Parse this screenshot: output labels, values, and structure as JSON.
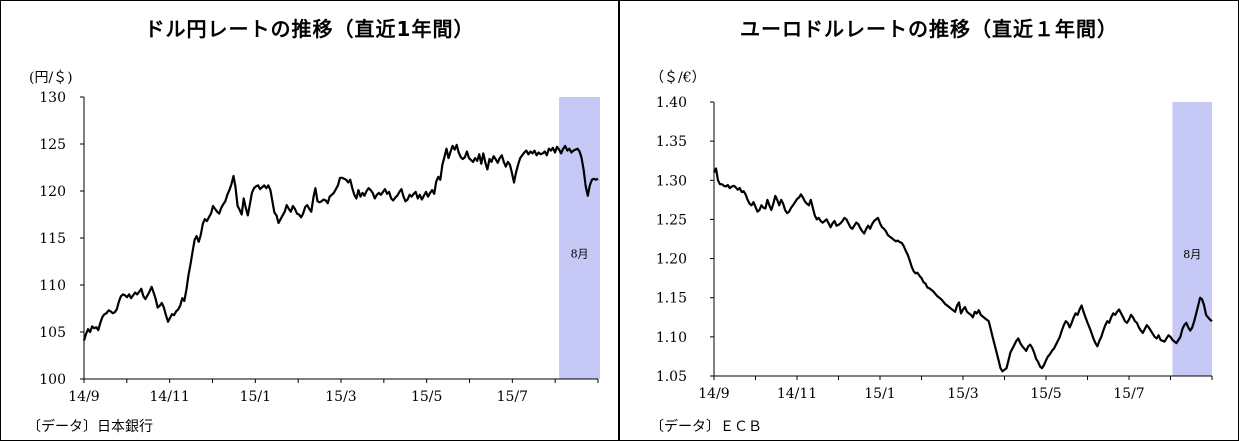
{
  "chart_data": [
    {
      "type": "line",
      "title": "ドル円レートの推移（直近1年間）",
      "ylabel": "(円/＄)",
      "source": "〔データ〕日本銀行",
      "ylim": [
        100,
        130
      ],
      "yticks": [
        100,
        105,
        110,
        115,
        120,
        125,
        130
      ],
      "ytick_labels": [
        "100",
        "105",
        "110",
        "115",
        "120",
        "125",
        "130"
      ],
      "x_labels": [
        "14/9",
        "14/11",
        "15/1",
        "15/3",
        "15/5",
        "15/7"
      ],
      "highlight": {
        "label": "8月",
        "start_index": 232,
        "end_index": 252,
        "color": "#c6c8f6"
      },
      "series": [
        {
          "color": "#000000",
          "values": [
            104.1,
            104.8,
            105.3,
            105.0,
            105.6,
            105.4,
            105.5,
            105.2,
            106.0,
            106.6,
            106.9,
            107.0,
            107.3,
            107.2,
            107.0,
            107.1,
            107.4,
            108.2,
            108.8,
            109.0,
            108.9,
            108.7,
            109.0,
            108.6,
            108.9,
            109.2,
            109.0,
            109.3,
            109.6,
            108.8,
            108.5,
            108.9,
            109.3,
            109.8,
            109.2,
            108.5,
            107.6,
            107.8,
            108.1,
            107.6,
            106.8,
            106.1,
            106.5,
            106.9,
            106.8,
            107.2,
            107.4,
            107.8,
            108.6,
            108.3,
            109.5,
            111.0,
            112.2,
            113.5,
            114.8,
            115.2,
            114.6,
            115.3,
            116.5,
            117.0,
            116.8,
            117.2,
            117.6,
            118.4,
            118.1,
            117.8,
            117.6,
            118.2,
            118.6,
            118.9,
            119.6,
            120.1,
            120.7,
            121.6,
            120.4,
            118.4,
            118.0,
            117.5,
            119.2,
            118.2,
            117.4,
            118.6,
            119.8,
            120.3,
            120.5,
            120.6,
            120.2,
            120.4,
            120.6,
            120.3,
            120.6,
            120.1,
            118.9,
            117.7,
            117.4,
            116.6,
            117.0,
            117.4,
            117.8,
            118.5,
            118.1,
            117.8,
            118.4,
            118.1,
            117.6,
            117.5,
            117.2,
            117.6,
            118.3,
            118.5,
            118.1,
            117.8,
            119.3,
            120.3,
            118.9,
            118.8,
            118.9,
            119.1,
            119.0,
            118.7,
            119.4,
            119.6,
            119.8,
            120.2,
            120.6,
            121.4,
            121.4,
            121.3,
            121.2,
            120.9,
            121.2,
            120.3,
            119.6,
            119.2,
            120.1,
            119.4,
            119.8,
            119.5,
            120.0,
            120.3,
            120.1,
            119.8,
            119.2,
            119.6,
            119.8,
            119.6,
            119.9,
            120.2,
            119.7,
            119.9,
            119.2,
            119.0,
            119.3,
            119.5,
            119.9,
            120.2,
            119.4,
            118.9,
            119.1,
            119.6,
            119.4,
            119.7,
            119.9,
            119.2,
            119.6,
            119.1,
            119.5,
            119.9,
            119.4,
            119.8,
            120.1,
            119.7,
            121.0,
            121.5,
            121.2,
            122.8,
            123.6,
            124.5,
            123.5,
            124.2,
            124.8,
            124.4,
            124.9,
            124.1,
            123.6,
            123.4,
            123.6,
            124.2,
            123.5,
            123.3,
            123.1,
            123.5,
            123.2,
            123.9,
            122.9,
            124.0,
            123.0,
            122.3,
            123.4,
            123.1,
            123.7,
            123.4,
            123.0,
            123.5,
            123.8,
            123.1,
            122.6,
            123.1,
            122.8,
            121.9,
            120.9,
            122.0,
            122.8,
            123.5,
            123.8,
            124.1,
            124.3,
            123.9,
            124.2,
            124.0,
            124.3,
            123.8,
            124.1,
            123.9,
            124.0,
            124.2,
            123.8,
            124.5,
            124.3,
            124.6,
            124.1,
            124.7,
            124.4,
            124.0,
            124.5,
            124.8,
            124.3,
            124.5,
            124.1,
            124.3,
            124.4,
            124.5,
            124.2,
            123.5,
            122.2,
            120.5,
            119.5,
            120.6,
            121.2,
            121.3,
            121.2,
            121.3
          ]
        }
      ]
    },
    {
      "type": "line",
      "title": "ユーロドルレートの推移（直近１年間）",
      "ylabel": "（＄/€）",
      "source": "〔データ〕ＥＣＢ",
      "ylim": [
        1.05,
        1.4
      ],
      "yticks": [
        1.05,
        1.1,
        1.15,
        1.2,
        1.25,
        1.3,
        1.35,
        1.4
      ],
      "ytick_labels": [
        "1.05",
        "1.10",
        "1.15",
        "1.20",
        "1.25",
        "1.30",
        "1.35",
        "1.40"
      ],
      "x_labels": [
        "14/9",
        "14/11",
        "15/1",
        "15/3",
        "15/5",
        "15/7"
      ],
      "highlight": {
        "label": "8月",
        "start_index": 232,
        "end_index": 252,
        "color": "#c6c8f6"
      },
      "series": [
        {
          "color": "#000000",
          "values": [
            1.31,
            1.315,
            1.3,
            1.295,
            1.295,
            1.293,
            1.292,
            1.294,
            1.29,
            1.292,
            1.293,
            1.291,
            1.288,
            1.29,
            1.285,
            1.286,
            1.282,
            1.275,
            1.27,
            1.268,
            1.272,
            1.266,
            1.26,
            1.262,
            1.268,
            1.265,
            1.264,
            1.275,
            1.268,
            1.262,
            1.27,
            1.28,
            1.275,
            1.268,
            1.275,
            1.27,
            1.262,
            1.258,
            1.26,
            1.265,
            1.268,
            1.272,
            1.276,
            1.278,
            1.282,
            1.278,
            1.273,
            1.27,
            1.268,
            1.275,
            1.265,
            1.255,
            1.25,
            1.252,
            1.248,
            1.246,
            1.248,
            1.25,
            1.245,
            1.24,
            1.245,
            1.248,
            1.242,
            1.243,
            1.245,
            1.248,
            1.252,
            1.25,
            1.245,
            1.24,
            1.238,
            1.242,
            1.246,
            1.244,
            1.239,
            1.235,
            1.232,
            1.238,
            1.242,
            1.238,
            1.244,
            1.248,
            1.25,
            1.252,
            1.245,
            1.24,
            1.238,
            1.235,
            1.23,
            1.228,
            1.226,
            1.224,
            1.222,
            1.223,
            1.221,
            1.22,
            1.216,
            1.21,
            1.205,
            1.198,
            1.19,
            1.184,
            1.181,
            1.182,
            1.178,
            1.175,
            1.17,
            1.168,
            1.163,
            1.162,
            1.16,
            1.158,
            1.155,
            1.152,
            1.15,
            1.148,
            1.145,
            1.142,
            1.14,
            1.138,
            1.136,
            1.134,
            1.132,
            1.14,
            1.144,
            1.13,
            1.135,
            1.138,
            1.132,
            1.13,
            1.128,
            1.125,
            1.132,
            1.13,
            1.134,
            1.128,
            1.126,
            1.124,
            1.122,
            1.12,
            1.11,
            1.1,
            1.09,
            1.08,
            1.07,
            1.06,
            1.056,
            1.058,
            1.06,
            1.07,
            1.08,
            1.085,
            1.09,
            1.095,
            1.098,
            1.092,
            1.088,
            1.085,
            1.082,
            1.088,
            1.09,
            1.086,
            1.08,
            1.072,
            1.068,
            1.062,
            1.06,
            1.064,
            1.07,
            1.075,
            1.078,
            1.082,
            1.085,
            1.09,
            1.095,
            1.1,
            1.108,
            1.115,
            1.12,
            1.118,
            1.112,
            1.118,
            1.125,
            1.13,
            1.128,
            1.135,
            1.14,
            1.132,
            1.125,
            1.118,
            1.112,
            1.105,
            1.098,
            1.092,
            1.088,
            1.095,
            1.1,
            1.108,
            1.115,
            1.12,
            1.118,
            1.125,
            1.13,
            1.128,
            1.132,
            1.135,
            1.13,
            1.125,
            1.12,
            1.118,
            1.122,
            1.128,
            1.125,
            1.12,
            1.118,
            1.112,
            1.108,
            1.105,
            1.11,
            1.115,
            1.112,
            1.108,
            1.104,
            1.1,
            1.098,
            1.102,
            1.096,
            1.095,
            1.094,
            1.098,
            1.102,
            1.1,
            1.096,
            1.094,
            1.092,
            1.096,
            1.1,
            1.11,
            1.115,
            1.118,
            1.112,
            1.108,
            1.112,
            1.12,
            1.13,
            1.14,
            1.15,
            1.148,
            1.14,
            1.128,
            1.125,
            1.122,
            1.12
          ]
        }
      ]
    }
  ]
}
